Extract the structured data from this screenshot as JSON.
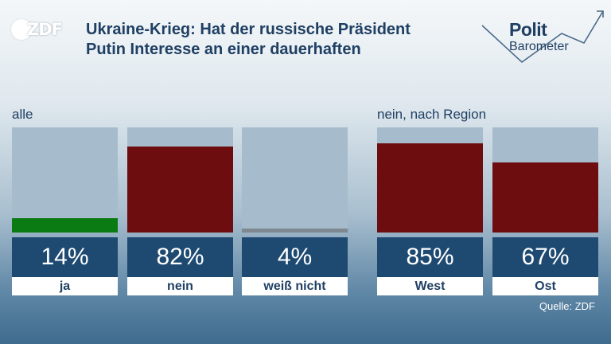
{
  "header": {
    "logo_text": "ZDF",
    "title_line1": "Ukraine-Krieg: Hat der russische Präsident",
    "title_line2": "Putin Interesse an einer dauerhaften"
  },
  "brand": {
    "name_top": "Polit",
    "name_bottom": "Barometer"
  },
  "colors": {
    "ja": "#0a7a12",
    "nein": "#6e0d0f",
    "weiss_nicht": "#7d8890",
    "bar_background": "#a6bccd",
    "value_box": "#1e4a72"
  },
  "chart_data": [
    {
      "type": "bar",
      "title": "alle",
      "categories": [
        "ja",
        "nein",
        "weiß nicht"
      ],
      "values": [
        14,
        82,
        4
      ],
      "labels": [
        "14%",
        "82%",
        "4%"
      ],
      "ylim": [
        0,
        100
      ]
    },
    {
      "type": "bar",
      "title": "nein, nach Region",
      "categories": [
        "West",
        "Ost"
      ],
      "values": [
        85,
        67
      ],
      "labels": [
        "85%",
        "67%"
      ],
      "ylim": [
        0,
        100
      ]
    }
  ],
  "source": "Quelle: ZDF"
}
